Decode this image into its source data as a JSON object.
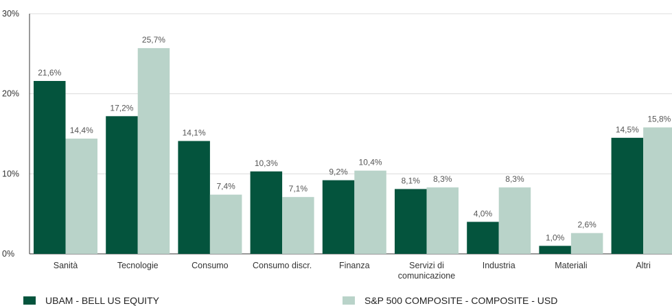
{
  "chart_data": {
    "type": "bar",
    "categories": [
      "Sanità",
      "Tecnologie",
      "Consumo",
      "Consumo discr.",
      "Finanza",
      "Servizi di comunicazione",
      "Industria",
      "Materiali",
      "Altri"
    ],
    "category_lines": [
      [
        "Sanità"
      ],
      [
        "Tecnologie"
      ],
      [
        "Consumo"
      ],
      [
        "Consumo discr."
      ],
      [
        "Finanza"
      ],
      [
        "Servizi di",
        "comunicazione"
      ],
      [
        "Industria"
      ],
      [
        "Materiali"
      ],
      [
        "Altri"
      ]
    ],
    "series": [
      {
        "name": "UBAM - BELL US EQUITY",
        "color": "#04543d",
        "values": [
          21.6,
          17.2,
          14.1,
          10.3,
          9.2,
          8.1,
          4.0,
          1.0,
          14.5
        ],
        "labels": [
          "21,6%",
          "17,2%",
          "14,1%",
          "10,3%",
          "9,2%",
          "8,1%",
          "4,0%",
          "1,0%",
          "14,5%"
        ]
      },
      {
        "name": "S&P 500 COMPOSITE - COMPOSITE - USD",
        "color": "#b9d3c9",
        "values": [
          14.4,
          25.7,
          7.4,
          7.1,
          10.4,
          8.3,
          8.3,
          2.6,
          15.8
        ],
        "labels": [
          "14,4%",
          "25,7%",
          "7,4%",
          "7,1%",
          "10,4%",
          "8,3%",
          "8,3%",
          "2,6%",
          "15,8%"
        ]
      }
    ],
    "yticks": [
      0,
      10,
      20,
      30
    ],
    "ytick_labels": [
      "0%",
      "10%",
      "20%",
      "30%"
    ],
    "ylim": [
      0,
      30
    ],
    "grid": true,
    "legend_position": "bottom"
  }
}
